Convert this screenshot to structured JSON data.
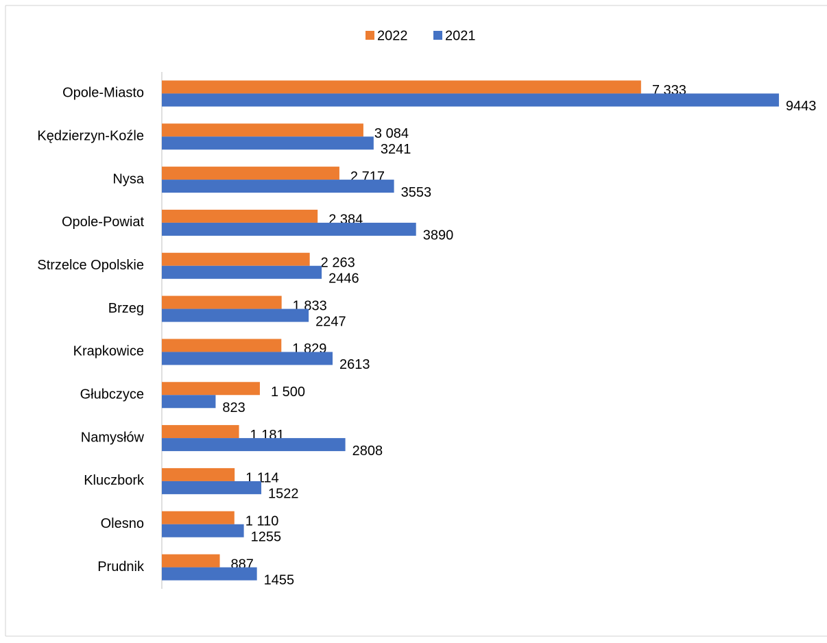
{
  "chart_data": {
    "type": "bar",
    "orientation": "horizontal",
    "categories": [
      "Opole-Miasto",
      "Kędzierzyn-Koźle",
      "Nysa",
      "Opole-Powiat",
      "Strzelce Opolskie",
      "Brzeg",
      "Krapkowice",
      "Głubczyce",
      "Namysłów",
      "Kluczbork",
      "Olesno",
      "Prudnik"
    ],
    "series": [
      {
        "name": "2022",
        "color": "#ED7D31",
        "values": [
          7333,
          3084,
          2717,
          2384,
          2263,
          1833,
          1829,
          1500,
          1181,
          1114,
          1110,
          887
        ],
        "value_labels": [
          "7 333",
          "3 084",
          "2 717",
          "2 384",
          "2 263",
          "1 833",
          "1 829",
          "1 500",
          "1 181",
          "1 114",
          "1 110",
          "887"
        ]
      },
      {
        "name": "2021",
        "color": "#4472C4",
        "values": [
          9443,
          3241,
          3553,
          3890,
          2446,
          2247,
          2613,
          823,
          2808,
          1522,
          1255,
          1455
        ]
      }
    ],
    "xlim": [
      0,
      10000
    ],
    "legend": "top",
    "grid": false
  }
}
